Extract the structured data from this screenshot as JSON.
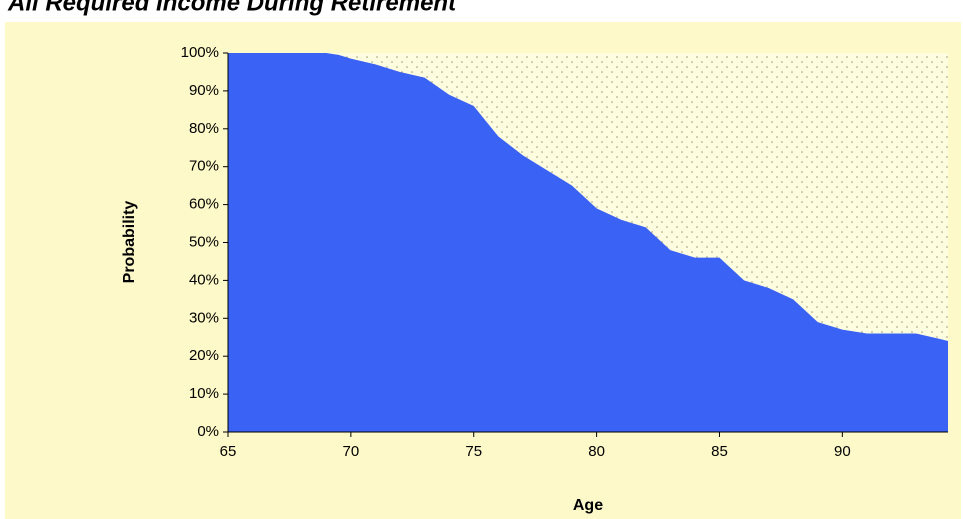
{
  "chart_data": {
    "type": "area",
    "title": "All Required Income During Retirement",
    "x_label": "Age",
    "y_label": "Probability",
    "x": [
      65,
      69,
      69.5,
      70,
      71,
      72,
      73,
      74,
      75,
      75.5,
      76,
      77,
      78,
      79,
      80,
      81,
      82,
      83,
      84,
      85,
      85.5,
      86,
      87,
      88,
      89,
      90,
      91,
      92,
      93,
      94,
      94.3
    ],
    "values": [
      100,
      100,
      99.5,
      98.5,
      97,
      95,
      93.5,
      89,
      86,
      82,
      78,
      73,
      69,
      65,
      59,
      56,
      54,
      48,
      46,
      46,
      43,
      40,
      38,
      35,
      29,
      27,
      26,
      26,
      26,
      24.5,
      24
    ],
    "color": "#3a62f5",
    "xlim": [
      65,
      94.3
    ],
    "xticks": [
      65,
      70,
      75,
      80,
      85,
      90
    ],
    "ylim": [
      0,
      100
    ],
    "yticks": [
      {
        "value": 0,
        "label": "0%"
      },
      {
        "value": 10,
        "label": "10%"
      },
      {
        "value": 20,
        "label": "20%"
      },
      {
        "value": 30,
        "label": "30%"
      },
      {
        "value": 40,
        "label": "40%"
      },
      {
        "value": 50,
        "label": "50%"
      },
      {
        "value": 60,
        "label": "60%"
      },
      {
        "value": 70,
        "label": "70%"
      },
      {
        "value": 80,
        "label": "80%"
      },
      {
        "value": 90,
        "label": "90%"
      },
      {
        "value": 100,
        "label": "100%"
      }
    ]
  }
}
